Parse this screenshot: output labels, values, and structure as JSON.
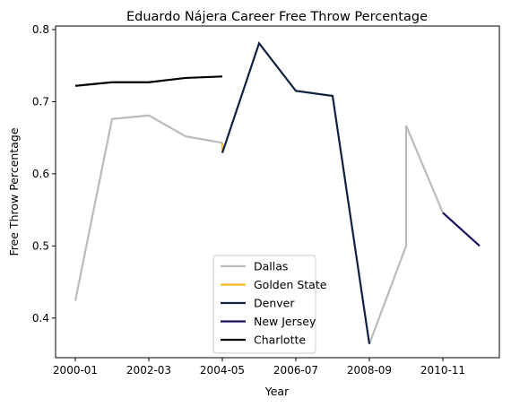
{
  "chart_data": {
    "type": "line",
    "title": "Eduardo Nájera Career Free Throw Percentage",
    "xlabel": "Year",
    "ylabel": "Free Throw Percentage",
    "xlim": [
      2000.0,
      2012.0
    ],
    "ylim": [
      0.345,
      0.805
    ],
    "x_ticks": [
      {
        "value": 2000.0,
        "label": "2000-01"
      },
      {
        "value": 2002.0,
        "label": "2002-03"
      },
      {
        "value": 2004.0,
        "label": "2004-05"
      },
      {
        "value": 2006.0,
        "label": "2006-07"
      },
      {
        "value": 2008.0,
        "label": "2008-09"
      },
      {
        "value": 2010.0,
        "label": "2010-11"
      }
    ],
    "y_ticks": [
      {
        "value": 0.4,
        "label": "0.4"
      },
      {
        "value": 0.5,
        "label": "0.5"
      },
      {
        "value": 0.6,
        "label": "0.6"
      },
      {
        "value": 0.7,
        "label": "0.7"
      },
      {
        "value": 0.8,
        "label": "0.8"
      }
    ],
    "grid": false,
    "legend_position": "lower-center",
    "series": [
      {
        "name": "Dallas",
        "color": "#bbbbbb",
        "x": [
          2000.0,
          2001.0,
          2002.0,
          2003.0,
          2004.0,
          null,
          2008.0,
          2009.0,
          2009.0,
          2010.0
        ],
        "y": [
          0.424,
          0.676,
          0.681,
          0.652,
          0.643,
          null,
          0.364,
          0.5,
          0.667,
          0.546
        ]
      },
      {
        "name": "Golden State",
        "color": "#fdb927",
        "x": [
          2004.0,
          2004.0
        ],
        "y": [
          0.643,
          0.629
        ]
      },
      {
        "name": "Denver",
        "color": "#0e2240",
        "x": [
          2004.0,
          2005.0,
          2006.0,
          2007.0,
          2008.0
        ],
        "y": [
          0.629,
          0.781,
          0.715,
          0.708,
          0.364
        ]
      },
      {
        "name": "New Jersey",
        "color": "#1d1160",
        "x": [
          2010.0,
          2011.0
        ],
        "y": [
          0.546,
          0.5
        ]
      },
      {
        "name": "Charlotte",
        "color": "#000000",
        "x": [
          2000.0,
          2001.0,
          2002.0,
          2003.0,
          2004.0
        ],
        "y": [
          0.722,
          0.727,
          0.727,
          0.733,
          0.735
        ]
      }
    ]
  }
}
